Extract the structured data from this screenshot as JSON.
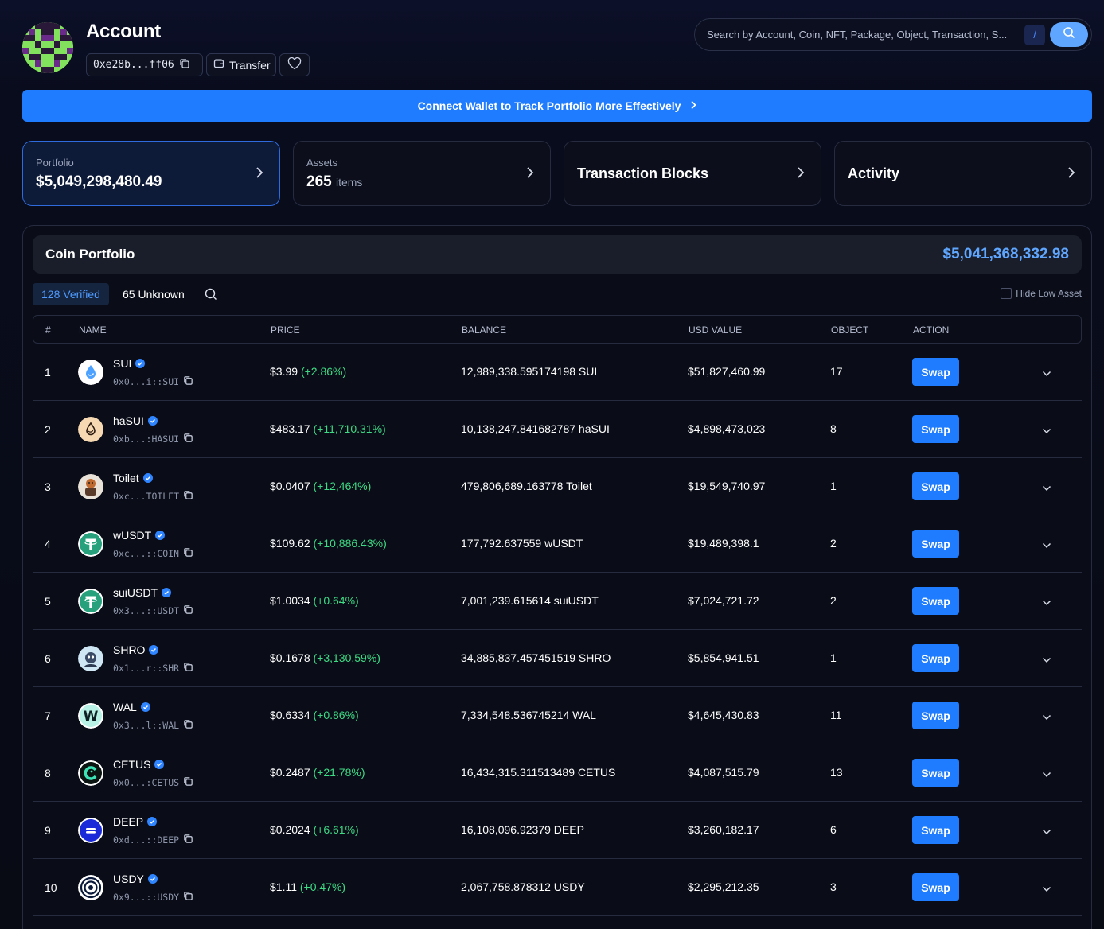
{
  "header": {
    "title": "Account",
    "address": "0xe28b...ff06",
    "transfer_label": "Transfer",
    "search_placeholder": "Search by Account, Coin, NFT, Package, Object, Transaction, S...",
    "search_shortcut": "/"
  },
  "banner": {
    "text": "Connect Wallet to Track Portfolio More Effectively"
  },
  "cards": {
    "portfolio": {
      "label": "Portfolio",
      "value": "$5,049,298,480.49"
    },
    "assets": {
      "label": "Assets",
      "value": "265",
      "unit": "items"
    },
    "transaction_blocks": {
      "label": "Transaction Blocks"
    },
    "activity": {
      "label": "Activity"
    }
  },
  "coin_portfolio": {
    "title": "Coin Portfolio",
    "total": "$5,041,368,332.98",
    "filter_verified": "128 Verified",
    "filter_unknown": "65 Unknown",
    "hide_low_label": "Hide Low Asset",
    "columns": [
      "#",
      "NAME",
      "PRICE",
      "BALANCE",
      "USD VALUE",
      "OBJECT",
      "ACTION"
    ],
    "swap_label": "Swap",
    "rows": [
      {
        "idx": "1",
        "name": "SUI",
        "type": "0x0...i::SUI",
        "price": "$3.99",
        "change": "(+2.86%)",
        "balance": "12,989,338.595174198 SUI",
        "usd": "$51,827,460.99",
        "objects": "17",
        "icon": "sui-icon"
      },
      {
        "idx": "2",
        "name": "haSUI",
        "type": "0xb...:HASUI",
        "price": "$483.17",
        "change": "(+11,710.31%)",
        "balance": "10,138,247.841682787 haSUI",
        "usd": "$4,898,473,023",
        "objects": "8",
        "icon": "hasui-icon"
      },
      {
        "idx": "3",
        "name": "Toilet",
        "type": "0xc...TOILET",
        "price": "$0.0407",
        "change": "(+12,464%)",
        "balance": "479,806,689.163778 Toilet",
        "usd": "$19,549,740.97",
        "objects": "1",
        "icon": "toilet-icon"
      },
      {
        "idx": "4",
        "name": "wUSDT",
        "type": "0xc...::COIN",
        "price": "$109.62",
        "change": "(+10,886.43%)",
        "balance": "177,792.637559 wUSDT",
        "usd": "$19,489,398.1",
        "objects": "2",
        "icon": "tether-icon"
      },
      {
        "idx": "5",
        "name": "suiUSDT",
        "type": "0x3...::USDT",
        "price": "$1.0034",
        "change": "(+0.64%)",
        "balance": "7,001,239.615614 suiUSDT",
        "usd": "$7,024,721.72",
        "objects": "2",
        "icon": "tether-icon"
      },
      {
        "idx": "6",
        "name": "SHRO",
        "type": "0x1...r::SHR",
        "price": "$0.1678",
        "change": "(+3,130.59%)",
        "balance": "34,885,837.457451519 SHRO",
        "usd": "$5,854,941.51",
        "objects": "1",
        "icon": "shro-icon"
      },
      {
        "idx": "7",
        "name": "WAL",
        "type": "0x3...l::WAL",
        "price": "$0.6334",
        "change": "(+0.86%)",
        "balance": "7,334,548.536745214 WAL",
        "usd": "$4,645,430.83",
        "objects": "11",
        "icon": "walrus-icon"
      },
      {
        "idx": "8",
        "name": "CETUS",
        "type": "0x0...:CETUS",
        "price": "$0.2487",
        "change": "(+21.78%)",
        "balance": "16,434,315.311513489 CETUS",
        "usd": "$4,087,515.79",
        "objects": "13",
        "icon": "cetus-icon"
      },
      {
        "idx": "9",
        "name": "DEEP",
        "type": "0xd...::DEEP",
        "price": "$0.2024",
        "change": "(+6.61%)",
        "balance": "16,108,096.92379 DEEP",
        "usd": "$3,260,182.17",
        "objects": "6",
        "icon": "deep-icon"
      },
      {
        "idx": "10",
        "name": "USDY",
        "type": "0x9...::USDY",
        "price": "$1.11",
        "change": "(+0.47%)",
        "balance": "2,067,758.878312 USDY",
        "usd": "$2,295,212.35",
        "objects": "3",
        "icon": "usdy-icon"
      }
    ]
  },
  "colors": {
    "accent": "#1f7cff",
    "positive": "#3ddc84",
    "total": "#5fa6ff"
  }
}
